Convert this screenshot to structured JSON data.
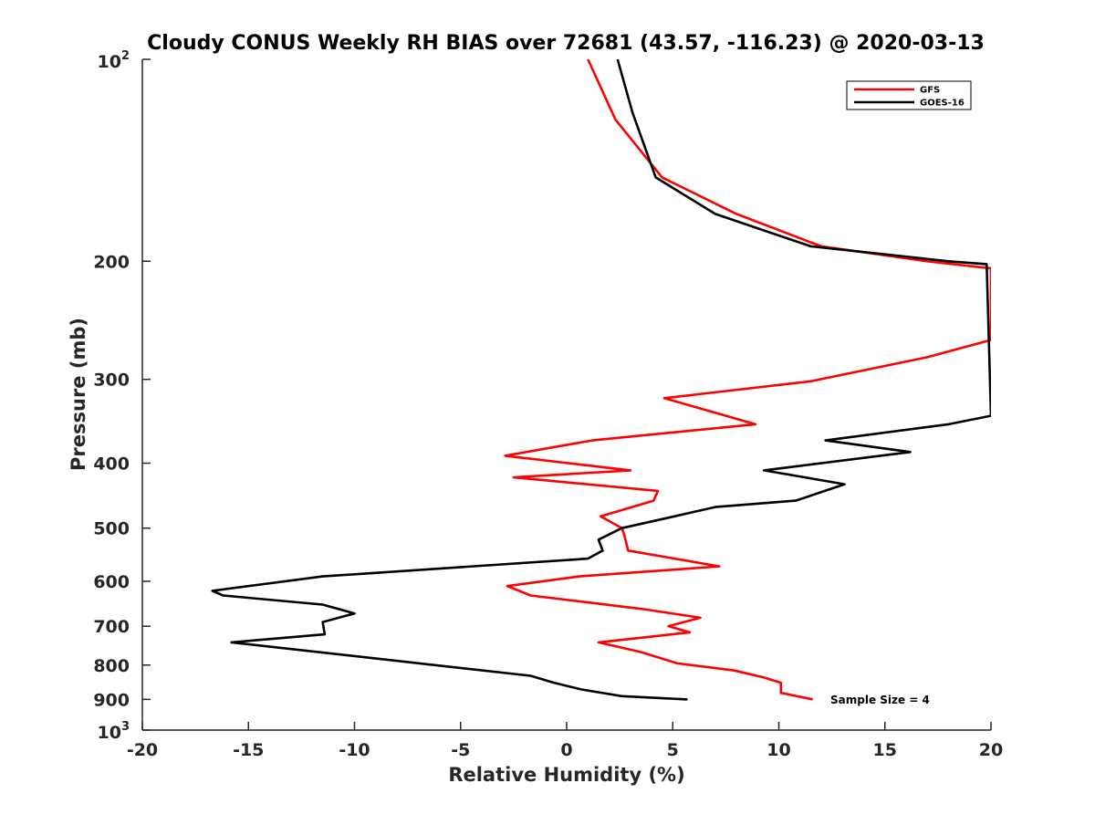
{
  "chart_data": {
    "type": "line",
    "title": "Cloudy CONUS Weekly RH BIAS over 72681 (43.57, -116.23) @ 2020-03-13",
    "xlabel": "Relative Humidity (%)",
    "ylabel": "Pressure (mb)",
    "xlim": [
      -20,
      20
    ],
    "ylim": [
      100,
      1000
    ],
    "yscale": "log",
    "y_reversed": true,
    "grid": false,
    "legend_position": "top-right",
    "x_ticks": [
      "-20",
      "-15",
      "-10",
      "-5",
      "0",
      "5",
      "10",
      "15",
      "20"
    ],
    "y_ticks": [
      {
        "value": 100,
        "base": "10",
        "exp": "2"
      },
      {
        "value": 200,
        "label": "200"
      },
      {
        "value": 300,
        "label": "300"
      },
      {
        "value": 400,
        "label": "400"
      },
      {
        "value": 500,
        "label": "500"
      },
      {
        "value": 600,
        "label": "600"
      },
      {
        "value": 700,
        "label": "700"
      },
      {
        "value": 800,
        "label": "800"
      },
      {
        "value": 900,
        "label": "900"
      },
      {
        "value": 1000,
        "base": "10",
        "exp": "3"
      }
    ],
    "annotation": "Sample Size = 4",
    "series": [
      {
        "name": "GFS",
        "color": "#ff0000",
        "x": [
          1.0,
          2.3,
          4.5,
          8.0,
          12.0,
          17.0,
          20.0,
          20.0,
          17.0,
          11.5,
          4.6,
          8.9,
          1.2,
          -2.9,
          3.0,
          -2.5,
          4.3,
          4.1,
          1.6,
          2.6,
          2.7,
          2.9,
          7.2,
          0.6,
          -2.8,
          -1.7,
          3.6,
          6.3,
          4.8,
          5.8,
          1.5,
          3.5,
          5.2,
          7.9,
          9.3,
          10.1,
          10.1,
          11.6
        ],
        "y": [
          100,
          123,
          150,
          170,
          190,
          200,
          205,
          262,
          278,
          302,
          320,
          350,
          370,
          390,
          410,
          420,
          440,
          455,
          480,
          500,
          510,
          540,
          570,
          590,
          610,
          630,
          660,
          680,
          700,
          715,
          740,
          765,
          795,
          815,
          835,
          850,
          880,
          900
        ]
      },
      {
        "name": "GOES-16",
        "color": "#000000",
        "x": [
          2.4,
          3.1,
          4.2,
          7.0,
          11.5,
          18.0,
          19.8,
          20.0,
          18.0,
          12.2,
          16.2,
          9.3,
          13.1,
          10.8,
          7.0,
          5.1,
          2.6,
          1.5,
          1.7,
          1.0,
          -11.5,
          -16.7,
          -16.2,
          -11.5,
          -10.0,
          -11.5,
          -11.4,
          -15.8,
          -1.7,
          -0.6,
          0.7,
          2.6,
          5.7
        ],
        "y": [
          100,
          120,
          150,
          170,
          190,
          200,
          202,
          340,
          350,
          370,
          385,
          410,
          430,
          455,
          465,
          480,
          500,
          520,
          540,
          555,
          590,
          620,
          630,
          650,
          670,
          690,
          720,
          740,
          830,
          850,
          870,
          890,
          900
        ]
      }
    ]
  }
}
